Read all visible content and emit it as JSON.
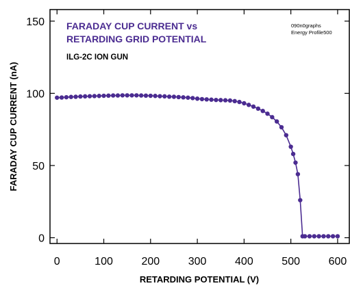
{
  "chart_data": {
    "type": "line",
    "title_lines": [
      "FARADAY CUP CURRENT vs",
      "RETARDING GRID POTENTIAL"
    ],
    "subtitle": "ILG-2C ION GUN",
    "annotations": [
      "090n0graphs",
      "Energy Profile500"
    ],
    "xlabel": "RETARDING POTENTIAL (V)",
    "ylabel": "FARADAY CUP CURRENT (nA)",
    "xlim": [
      -15,
      625
    ],
    "ylim": [
      -4,
      158
    ],
    "xticks": [
      0,
      100,
      200,
      300,
      400,
      500,
      600
    ],
    "yticks": [
      0,
      50,
      100,
      150
    ],
    "grid": false,
    "colors": {
      "series": "#4b2c91",
      "axis": "#000000",
      "title": "#4b2c91"
    },
    "series": [
      {
        "marker": "circle",
        "x": [
          0,
          10,
          20,
          30,
          40,
          50,
          60,
          70,
          80,
          90,
          100,
          110,
          120,
          130,
          140,
          150,
          160,
          170,
          180,
          190,
          200,
          210,
          220,
          230,
          240,
          250,
          260,
          270,
          280,
          290,
          300,
          310,
          320,
          330,
          340,
          350,
          360,
          370,
          380,
          390,
          400,
          410,
          420,
          430,
          440,
          450,
          460,
          470,
          480,
          490,
          500,
          505,
          510,
          515,
          520,
          525,
          530,
          540,
          550,
          560,
          570,
          580,
          590,
          600
        ],
        "y": [
          97.0,
          97.1,
          97.3,
          97.5,
          97.6,
          97.8,
          97.9,
          98.0,
          98.1,
          98.2,
          98.3,
          98.4,
          98.5,
          98.5,
          98.6,
          98.6,
          98.6,
          98.6,
          98.5,
          98.4,
          98.3,
          98.2,
          98.0,
          97.9,
          97.7,
          97.6,
          97.4,
          97.2,
          97.0,
          96.7,
          96.3,
          96.0,
          95.8,
          95.6,
          95.4,
          95.3,
          95.2,
          95.0,
          94.6,
          94.0,
          93.1,
          92.0,
          90.8,
          89.4,
          87.8,
          85.9,
          83.5,
          80.5,
          76.5,
          71.0,
          63.0,
          58.0,
          52.0,
          44.0,
          26.0,
          1.0,
          1.0,
          1.0,
          1.0,
          1.0,
          1.0,
          1.0,
          1.0,
          1.0
        ]
      }
    ]
  }
}
